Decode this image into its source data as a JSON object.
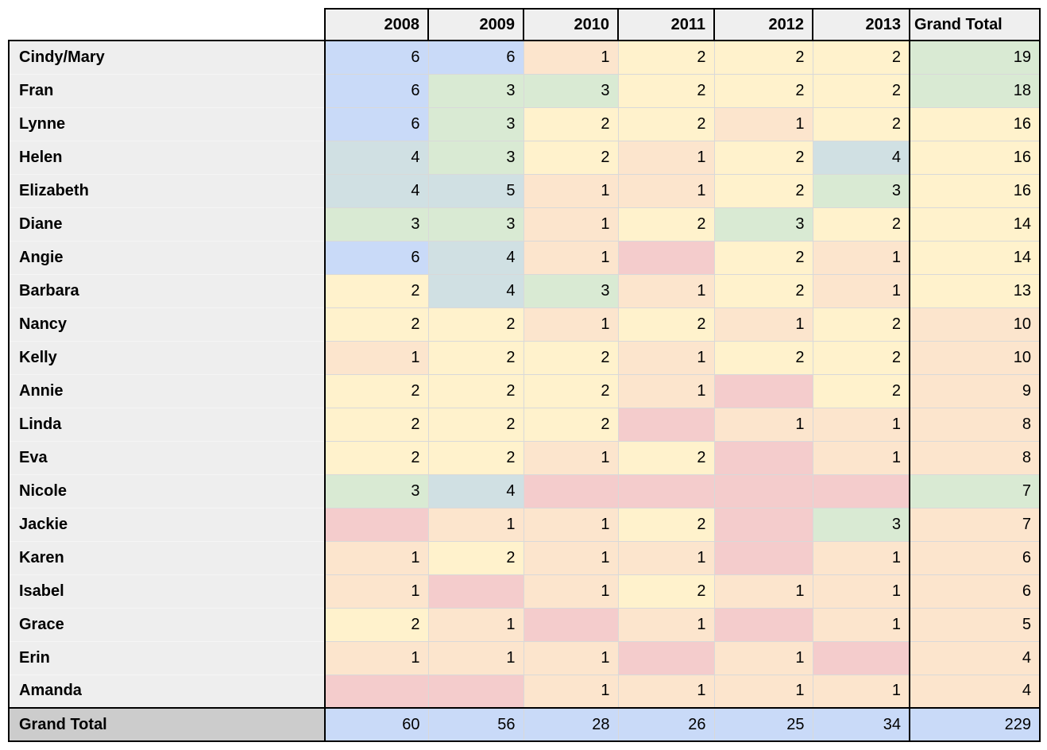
{
  "palette": {
    "blue": "#c9daf8",
    "cyan": "#d0e0e3",
    "green": "#d9ead3",
    "yellow": "#fff2cc",
    "peach": "#fce5cd",
    "pink": "#f4cccc",
    "header_bg": "#efefef",
    "row_header_bg": "#eeeeee",
    "grand_total_label_bg": "#cccccc",
    "grand_total_row_bg": "#c9daf8",
    "grid_line": "#d9d9d9",
    "frame": "#000000"
  },
  "chart_data": {
    "type": "table",
    "title": "",
    "columns": [
      "",
      "2008",
      "2009",
      "2010",
      "2011",
      "2012",
      "2013",
      "Grand Total"
    ],
    "rows": [
      {
        "name": "Cindy/Mary",
        "values": [
          6,
          6,
          1,
          2,
          2,
          2
        ],
        "colors": [
          "blue",
          "blue",
          "peach",
          "yellow",
          "yellow",
          "yellow"
        ],
        "total": 19,
        "total_color": "green"
      },
      {
        "name": "Fran",
        "values": [
          6,
          3,
          3,
          2,
          2,
          2
        ],
        "colors": [
          "blue",
          "green",
          "green",
          "yellow",
          "yellow",
          "yellow"
        ],
        "total": 18,
        "total_color": "green"
      },
      {
        "name": "Lynne",
        "values": [
          6,
          3,
          2,
          2,
          1,
          2
        ],
        "colors": [
          "blue",
          "green",
          "yellow",
          "yellow",
          "peach",
          "yellow"
        ],
        "total": 16,
        "total_color": "yellow"
      },
      {
        "name": "Helen",
        "values": [
          4,
          3,
          2,
          1,
          2,
          4
        ],
        "colors": [
          "cyan",
          "green",
          "yellow",
          "peach",
          "yellow",
          "cyan"
        ],
        "total": 16,
        "total_color": "yellow"
      },
      {
        "name": "Elizabeth",
        "values": [
          4,
          5,
          1,
          1,
          2,
          3
        ],
        "colors": [
          "cyan",
          "cyan",
          "peach",
          "peach",
          "yellow",
          "green"
        ],
        "total": 16,
        "total_color": "yellow"
      },
      {
        "name": "Diane",
        "values": [
          3,
          3,
          1,
          2,
          3,
          2
        ],
        "colors": [
          "green",
          "green",
          "peach",
          "yellow",
          "green",
          "yellow"
        ],
        "total": 14,
        "total_color": "yellow"
      },
      {
        "name": "Angie",
        "values": [
          6,
          4,
          1,
          null,
          2,
          1
        ],
        "colors": [
          "blue",
          "cyan",
          "peach",
          "pink",
          "yellow",
          "peach"
        ],
        "total": 14,
        "total_color": "yellow"
      },
      {
        "name": "Barbara",
        "values": [
          2,
          4,
          3,
          1,
          2,
          1
        ],
        "colors": [
          "yellow",
          "cyan",
          "green",
          "peach",
          "yellow",
          "peach"
        ],
        "total": 13,
        "total_color": "yellow"
      },
      {
        "name": "Nancy",
        "values": [
          2,
          2,
          1,
          2,
          1,
          2
        ],
        "colors": [
          "yellow",
          "yellow",
          "peach",
          "yellow",
          "peach",
          "yellow"
        ],
        "total": 10,
        "total_color": "peach"
      },
      {
        "name": "Kelly",
        "values": [
          1,
          2,
          2,
          1,
          2,
          2
        ],
        "colors": [
          "peach",
          "yellow",
          "yellow",
          "peach",
          "yellow",
          "yellow"
        ],
        "total": 10,
        "total_color": "peach"
      },
      {
        "name": "Annie",
        "values": [
          2,
          2,
          2,
          1,
          null,
          2
        ],
        "colors": [
          "yellow",
          "yellow",
          "yellow",
          "peach",
          "pink",
          "yellow"
        ],
        "total": 9,
        "total_color": "peach"
      },
      {
        "name": "Linda",
        "values": [
          2,
          2,
          2,
          null,
          1,
          1
        ],
        "colors": [
          "yellow",
          "yellow",
          "yellow",
          "pink",
          "peach",
          "peach"
        ],
        "total": 8,
        "total_color": "peach"
      },
      {
        "name": "Eva",
        "values": [
          2,
          2,
          1,
          2,
          null,
          1
        ],
        "colors": [
          "yellow",
          "yellow",
          "peach",
          "yellow",
          "pink",
          "peach"
        ],
        "total": 8,
        "total_color": "peach"
      },
      {
        "name": "Nicole",
        "values": [
          3,
          4,
          null,
          null,
          null,
          null
        ],
        "colors": [
          "green",
          "cyan",
          "pink",
          "pink",
          "pink",
          "pink"
        ],
        "total": 7,
        "total_color": "green"
      },
      {
        "name": "Jackie",
        "values": [
          null,
          1,
          1,
          2,
          null,
          3
        ],
        "colors": [
          "pink",
          "peach",
          "peach",
          "yellow",
          "pink",
          "green"
        ],
        "total": 7,
        "total_color": "peach"
      },
      {
        "name": "Karen",
        "values": [
          1,
          2,
          1,
          1,
          null,
          1
        ],
        "colors": [
          "peach",
          "yellow",
          "peach",
          "peach",
          "pink",
          "peach"
        ],
        "total": 6,
        "total_color": "peach"
      },
      {
        "name": "Isabel",
        "values": [
          1,
          null,
          1,
          2,
          1,
          1
        ],
        "colors": [
          "peach",
          "pink",
          "peach",
          "yellow",
          "peach",
          "peach"
        ],
        "total": 6,
        "total_color": "peach"
      },
      {
        "name": "Grace",
        "values": [
          2,
          1,
          null,
          1,
          null,
          1
        ],
        "colors": [
          "yellow",
          "peach",
          "pink",
          "peach",
          "pink",
          "peach"
        ],
        "total": 5,
        "total_color": "peach"
      },
      {
        "name": "Erin",
        "values": [
          1,
          1,
          1,
          null,
          1,
          null
        ],
        "colors": [
          "peach",
          "peach",
          "peach",
          "pink",
          "peach",
          "pink"
        ],
        "total": 4,
        "total_color": "peach"
      },
      {
        "name": "Amanda",
        "values": [
          null,
          null,
          1,
          1,
          1,
          1
        ],
        "colors": [
          "pink",
          "pink",
          "peach",
          "peach",
          "peach",
          "peach"
        ],
        "total": 4,
        "total_color": "peach"
      }
    ],
    "grand_total": {
      "label": "Grand Total",
      "values": [
        60,
        56,
        28,
        26,
        25,
        34
      ],
      "total": 229,
      "color": "blue"
    }
  }
}
